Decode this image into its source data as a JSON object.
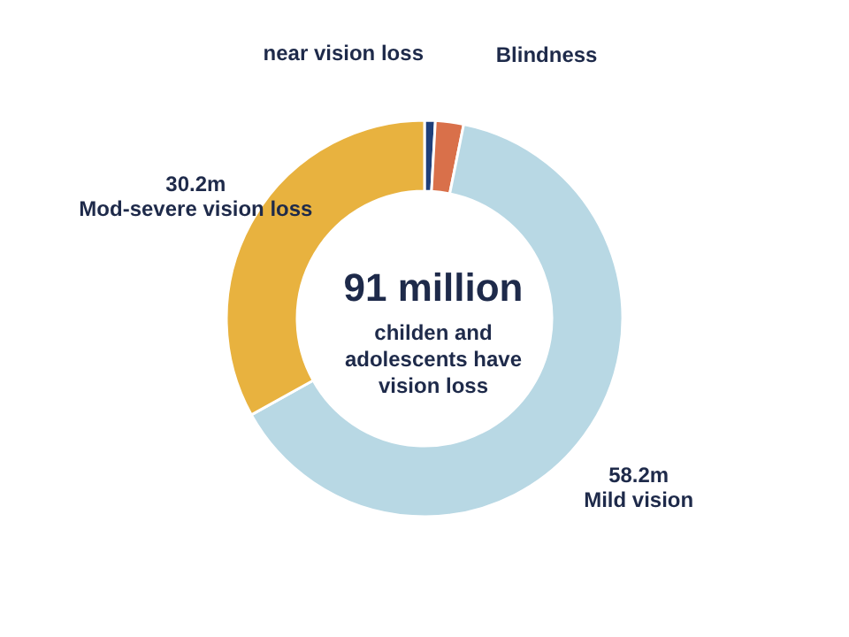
{
  "chart_data": {
    "type": "donut",
    "title": "91 million",
    "subtitle": "childen and adolescents have vision loss",
    "categories": [
      "near vision loss",
      "Blindness",
      "Mild vision",
      "Mod-severe vision loss"
    ],
    "values": [
      0.8,
      2.1,
      58.2,
      30.2
    ],
    "value_labels": [
      null,
      null,
      "58.2m",
      "30.2m"
    ],
    "colors": [
      "#1f3f7a",
      "#d9704a",
      "#b8d8e4",
      "#e8b23f"
    ],
    "legend": false
  }
}
